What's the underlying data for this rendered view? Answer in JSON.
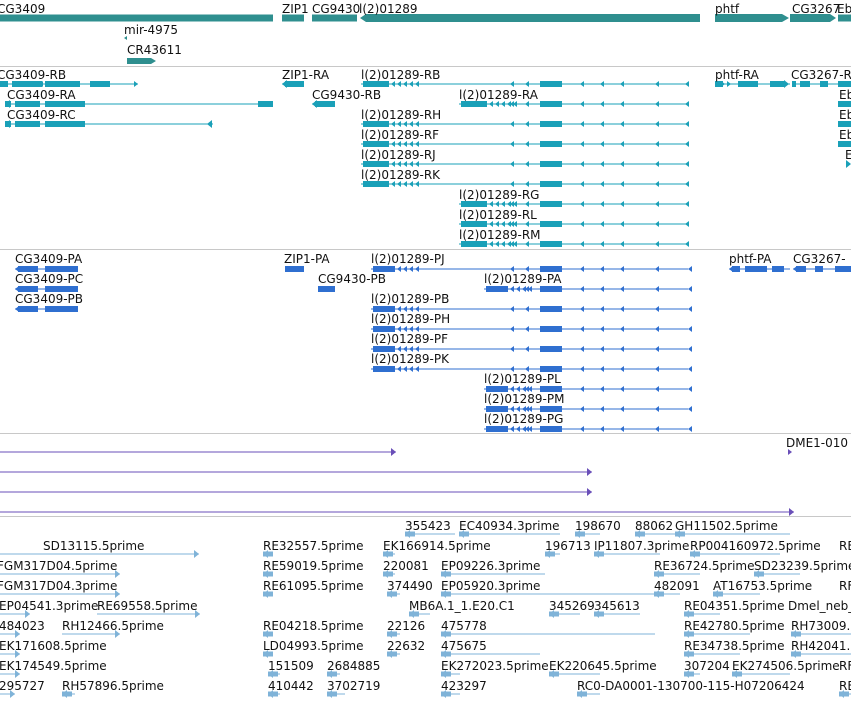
{
  "colors": {
    "gene": "#2f8f8f",
    "transcript": "#1aa0b8",
    "cds": "#2f6fd0",
    "purple": "#6a4fb8",
    "est": "#7fb3d8",
    "separator": "#c8c8c8"
  },
  "genes": [
    "CG3409",
    "ZIP1",
    "CG9430",
    "l(2)01289",
    "phtf",
    "CG3267",
    "Eb",
    "mir-4975",
    "CR43611"
  ],
  "transcripts": [
    "CG3409-RB",
    "CG3409-RA",
    "CG3409-RC",
    "ZIP1-RA",
    "CG9430-RB",
    "l(2)01289-RB",
    "l(2)01289-RA",
    "l(2)01289-RH",
    "l(2)01289-RF",
    "l(2)01289-RJ",
    "l(2)01289-RK",
    "l(2)01289-RG",
    "l(2)01289-RL",
    "l(2)01289-RM",
    "phtf-RA",
    "CG3267-R",
    "Eb"
  ],
  "proteins": [
    "CG3409-PA",
    "CG3409-PC",
    "CG3409-PB",
    "ZIP1-PA",
    "CG9430-PB",
    "l(2)01289-PJ",
    "l(2)01289-PA",
    "l(2)01289-PB",
    "l(2)01289-PH",
    "l(2)01289-PF",
    "l(2)01289-PK",
    "l(2)01289-PL",
    "l(2)01289-PM",
    "l(2)01289-PG",
    "phtf-PA",
    "CG3267-"
  ],
  "features": [
    "DME1-010"
  ],
  "ests": [
    "355423",
    "EC40934.3prime",
    "198670",
    "88062",
    "GH11502.5prime",
    "SD13115.5prime",
    "RE32557.5prime",
    "EK166914.5prime",
    "196713",
    "IP11807.3prime",
    "RP004160972.5prime",
    "RE",
    "FGM317D04.5prime",
    "RE59019.5prime",
    "220081",
    "EP09226.3prime",
    "RE36724.5prime",
    "SD23239.5prime",
    "FGM317D04.3prime",
    "RE61095.5prime",
    "374490",
    "EP05920.3prime",
    "482091",
    "AT16753.5prime",
    "RF",
    "EP04541.3prime",
    "RE69558.5prime",
    "MB6A.1_1.E20.C1",
    "345269",
    "345613",
    "RE04351.5prime",
    "Dmel_neb_",
    "484023",
    "RH12466.5prime",
    "RE04218.5prime",
    "22126",
    "475778",
    "RE42780.5prime",
    "RH73009.",
    "EK171608.5prime",
    "LD04993.5prime",
    "22632",
    "475675",
    "RE34738.5prime",
    "RH42041.",
    "EK174549.5prime",
    "151509",
    "2684885",
    "EK272023.5prime",
    "EK220645.5prime",
    "307204",
    "EK274506.5prime",
    "RF",
    "295727",
    "RH57896.5prime",
    "410442",
    "3702719",
    "423297",
    "RC0-DA0001-130700-115-H07206424",
    "RE"
  ]
}
